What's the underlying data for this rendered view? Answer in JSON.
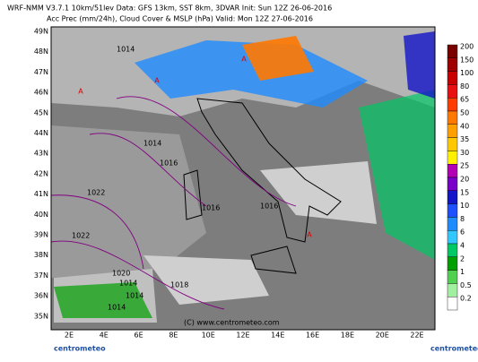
{
  "header": {
    "line1": "WRF-NMM V3.7.1 10km/51lev  Data: GFS 13km, SST 8km, 3DVAR  Init: Sun 12Z 26-06-2016",
    "line2": "Acc Prec (mm/24h), Cloud Cover & MSLP (hPa)  Valid: Mon 12Z 27-06-2016"
  },
  "map": {
    "lat_labels": [
      "49N",
      "48N",
      "47N",
      "46N",
      "45N",
      "44N",
      "43N",
      "42N",
      "41N",
      "40N",
      "39N",
      "38N",
      "37N",
      "36N",
      "35N"
    ],
    "lon_labels": [
      "2E",
      "4E",
      "6E",
      "8E",
      "10E",
      "12E",
      "14E",
      "16E",
      "18E",
      "20E",
      "22E"
    ],
    "isobar_labels": [
      "1014",
      "1014",
      "1016",
      "1022",
      "1016",
      "1016",
      "1022",
      "1020",
      "1018",
      "1014",
      "1014",
      "1014"
    ],
    "pressure_markers": [
      "A",
      "A",
      "A",
      "A"
    ],
    "copyright": "(C) www.centrometeo.com"
  },
  "colorbar": {
    "labels": [
      "200",
      "150",
      "100",
      "80",
      "65",
      "50",
      "40",
      "35",
      "30",
      "25",
      "20",
      "15",
      "10",
      "8",
      "6",
      "4",
      "2",
      "1",
      "0.5",
      "0.2"
    ],
    "colors": [
      "#7a0000",
      "#a00000",
      "#c80000",
      "#e81010",
      "#ff3c00",
      "#ff7800",
      "#ffa000",
      "#ffc800",
      "#fff000",
      "#b400b4",
      "#7800c8",
      "#1414c8",
      "#1e50ff",
      "#1e8cff",
      "#32c8ff",
      "#00c864",
      "#00a000",
      "#50d050",
      "#a0f0a0",
      "#ffffff"
    ]
  },
  "footer": {
    "logo_left": "centrometeo",
    "logo_right": "centrometeo"
  }
}
